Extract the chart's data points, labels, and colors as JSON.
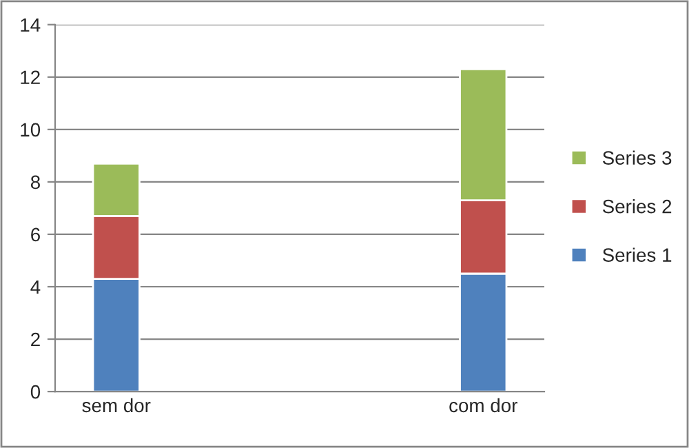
{
  "chart_data": {
    "type": "bar",
    "stacked": true,
    "categories": [
      "sem dor",
      null,
      null,
      "com dor"
    ],
    "series": [
      {
        "name": "Series 1",
        "color": "#4f81bd",
        "values": [
          4.3,
          null,
          null,
          4.5
        ]
      },
      {
        "name": "Series 2",
        "color": "#c0504d",
        "values": [
          2.4,
          null,
          null,
          2.8
        ]
      },
      {
        "name": "Series 3",
        "color": "#9bbb59",
        "values": [
          2.0,
          null,
          null,
          5.0
        ]
      }
    ],
    "ylim": [
      0,
      14
    ],
    "yticks": [
      0,
      2,
      4,
      6,
      8,
      10,
      12,
      14
    ],
    "grid": "y",
    "legend": "right"
  }
}
